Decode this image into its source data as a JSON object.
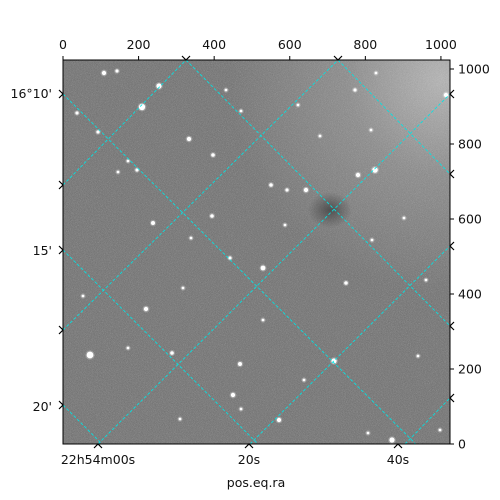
{
  "chart_data": {
    "type": "image",
    "xlabel": "pos.eq.ra",
    "ylabel": "",
    "pixel_axes": {
      "x": {
        "range": [
          0,
          1024
        ],
        "ticks": [
          0,
          200,
          400,
          600,
          800,
          1000
        ],
        "labels": [
          "0",
          "200",
          "400",
          "600",
          "800",
          "1000"
        ]
      },
      "y": {
        "range": [
          0,
          1024
        ],
        "ticks": [
          0,
          200,
          400,
          600,
          800,
          1000
        ],
        "labels": [
          "0",
          "200",
          "400",
          "600",
          "800",
          "1000"
        ]
      }
    },
    "world_axes": {
      "ra_labels": [
        "22h54m00s",
        "20s",
        "40s"
      ],
      "dec_labels": [
        "16°10'",
        "15'",
        "20'"
      ]
    },
    "grid": true,
    "grid_color": "#00e5e5",
    "colormap": "gray"
  }
}
